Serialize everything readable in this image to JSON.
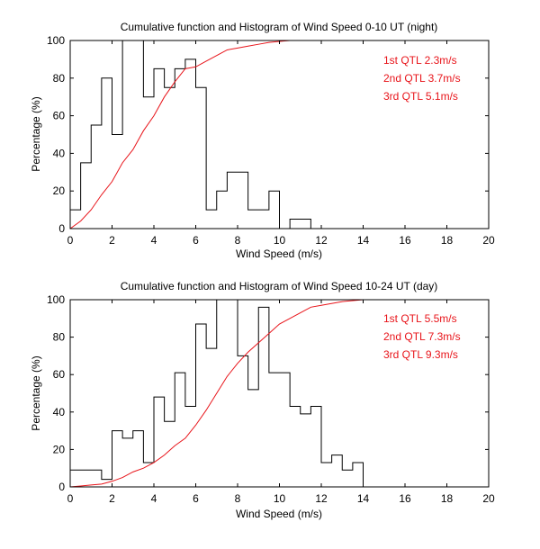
{
  "colors": {
    "histogram": "#000000",
    "cumulative": "#e8141a",
    "background": "#ffffff"
  },
  "chart_data": [
    {
      "type": "line",
      "title": "Cumulative function and Histogram of Wind Speed 0-10 UT (night)",
      "xlabel": "Wind Speed (m/s)",
      "ylabel": "Percentage (%)",
      "xlim": [
        0,
        20
      ],
      "ylim": [
        0,
        100
      ],
      "xticks": [
        0,
        2,
        4,
        6,
        8,
        10,
        12,
        14,
        16,
        18,
        20
      ],
      "yticks": [
        0,
        20,
        40,
        60,
        80,
        100
      ],
      "grid": false,
      "annotations": [
        "1st QTL 2.3m/s",
        "2nd QTL 3.7m/s",
        "3rd QTL 5.1m/s"
      ],
      "histogram": {
        "bin_width": 0.5,
        "bin_edges_start": 0,
        "values": [
          10,
          35,
          55,
          80,
          50,
          100,
          100,
          70,
          85,
          75,
          85,
          90,
          75,
          10,
          20,
          30,
          30,
          10,
          10,
          20,
          0,
          5,
          5,
          0,
          0,
          0,
          0,
          0,
          0,
          0,
          0,
          0,
          0,
          0,
          0,
          0,
          0,
          0,
          0,
          0
        ]
      },
      "cumulative": {
        "x": [
          0,
          0.5,
          1,
          1.5,
          2,
          2.5,
          3,
          3.5,
          4,
          4.5,
          5,
          5.5,
          6,
          6.5,
          7,
          7.5,
          8,
          8.5,
          9,
          9.5,
          10,
          10.5,
          11,
          12,
          14,
          16,
          18,
          20
        ],
        "y": [
          0,
          4,
          10,
          18,
          25,
          35,
          42,
          52,
          60,
          70,
          78,
          85,
          86,
          89,
          92,
          95,
          96,
          97,
          98,
          99,
          99.5,
          100,
          100,
          100,
          100,
          100,
          100,
          100
        ]
      }
    },
    {
      "type": "line",
      "title": "Cumulative function and Histogram of Wind Speed 10-24 UT (day)",
      "xlabel": "Wind Speed (m/s)",
      "ylabel": "Percentage (%)",
      "xlim": [
        0,
        20
      ],
      "ylim": [
        0,
        100
      ],
      "xticks": [
        0,
        2,
        4,
        6,
        8,
        10,
        12,
        14,
        16,
        18,
        20
      ],
      "yticks": [
        0,
        20,
        40,
        60,
        80,
        100
      ],
      "grid": false,
      "annotations": [
        "1st QTL 5.5m/s",
        "2nd QTL 7.3m/s",
        "3rd QTL 9.3m/s"
      ],
      "histogram": {
        "bin_width": 0.5,
        "bin_edges_start": 0,
        "values": [
          9,
          9,
          9,
          4,
          30,
          26,
          30,
          13,
          48,
          35,
          61,
          43,
          87,
          74,
          100,
          100,
          70,
          52,
          96,
          61,
          61,
          43,
          39,
          43,
          13,
          17,
          9,
          13,
          0,
          0,
          0,
          0,
          0,
          0,
          0,
          0,
          0,
          0,
          0,
          0
        ]
      },
      "cumulative": {
        "x": [
          0,
          0.5,
          1,
          1.5,
          2,
          2.5,
          3,
          3.5,
          4,
          4.5,
          5,
          5.5,
          6,
          6.5,
          7,
          7.5,
          8,
          8.5,
          9,
          9.5,
          10,
          10.5,
          11,
          11.5,
          12,
          13,
          14,
          16,
          18,
          20
        ],
        "y": [
          0,
          0.5,
          1,
          1.5,
          3,
          5,
          8,
          10,
          13,
          17,
          22,
          26,
          33,
          41,
          50,
          59,
          66,
          72,
          77,
          82,
          87,
          90,
          93,
          96,
          97,
          99,
          100,
          100,
          100,
          100
        ]
      }
    }
  ]
}
